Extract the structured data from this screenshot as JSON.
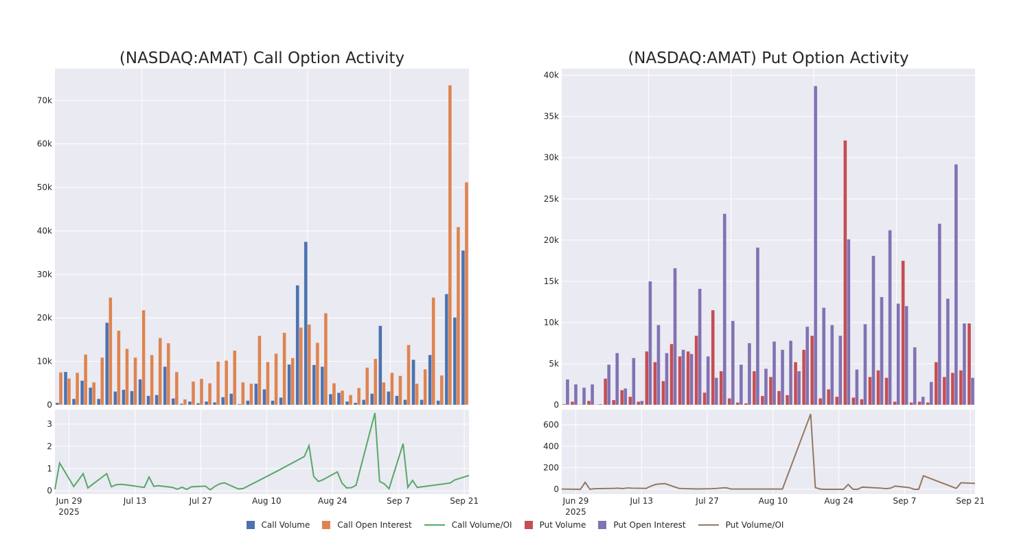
{
  "chart_data": [
    {
      "type": "bar+line",
      "title": "(NASDAQ:AMAT) Call Option Activity",
      "bar_ylim": [
        0,
        77300
      ],
      "bar_yticks": [
        0,
        10000,
        20000,
        30000,
        40000,
        50000,
        60000,
        70000
      ],
      "bar_ytick_labels": [
        "0",
        "10k",
        "20k",
        "30k",
        "40k",
        "50k",
        "60k",
        "70k"
      ],
      "line_ylim": [
        -0.15,
        3.65
      ],
      "line_yticks": [
        0,
        1,
        2,
        3
      ],
      "line_ytick_labels": [
        "0",
        "1",
        "2",
        "3"
      ],
      "series": [
        {
          "name": "Call Volume",
          "color": "#4c72b0",
          "values": [
            500,
            7600,
            1400,
            5600,
            4000,
            1400,
            18900,
            3100,
            3500,
            3200,
            5900,
            2100,
            2300,
            8800,
            1500,
            300,
            800,
            400,
            800,
            600,
            1800,
            2600,
            200,
            1000,
            4900,
            3600,
            1000,
            1700,
            9300,
            27500,
            37500,
            9200,
            8800,
            2500,
            2800,
            800,
            500,
            1200,
            2600,
            18200,
            3100,
            2100,
            1200,
            10400,
            1200,
            11500,
            1000,
            25500,
            20100,
            35500
          ]
        },
        {
          "name": "Call Open Interest",
          "color": "#dd8452",
          "values": [
            7500,
            6100,
            7400,
            11600,
            5200,
            10900,
            24700,
            17100,
            12900,
            10900,
            21800,
            11500,
            15400,
            14200,
            7600,
            1300,
            5400,
            6000,
            5000,
            10000,
            10200,
            12500,
            5200,
            4900,
            15900,
            9900,
            11800,
            16600,
            10800,
            17800,
            18500,
            14300,
            21100,
            5000,
            3300,
            2300,
            3900,
            8600,
            10600,
            5200,
            7400,
            6700,
            13800,
            4900,
            8200,
            24700,
            6800,
            73500,
            40900,
            51200
          ]
        },
        {
          "name": "Call Volume/OI",
          "color": "#55a868",
          "values": [
            0.07,
            1.25,
            0.19,
            0.48,
            0.77,
            0.13,
            0.77,
            0.18,
            0.27,
            0.29,
            0.27,
            0.18,
            0.15,
            0.62,
            0.2,
            0.23,
            0.15,
            0.07,
            0.16,
            0.06,
            0.18,
            0.21,
            0.04,
            0.2,
            0.31,
            0.36,
            0.08,
            0.1,
            0.86,
            1.54,
            2.03,
            0.64,
            0.42,
            0.5,
            0.85,
            0.35,
            0.13,
            0.14,
            0.25,
            3.5,
            0.42,
            0.31,
            0.09,
            2.12,
            0.15,
            0.47,
            0.15,
            0.35,
            0.49,
            0.69
          ]
        }
      ]
    },
    {
      "type": "bar+line",
      "title": "(NASDAQ:AMAT) Put Option Activity",
      "bar_ylim": [
        0,
        40800
      ],
      "bar_yticks": [
        0,
        5000,
        10000,
        15000,
        20000,
        25000,
        30000,
        35000,
        40000
      ],
      "bar_ytick_labels": [
        "0",
        "5k",
        "10k",
        "15k",
        "20k",
        "25k",
        "30k",
        "35k",
        "40k"
      ],
      "line_ylim": [
        -45,
        740
      ],
      "line_yticks": [
        0,
        200,
        400,
        600
      ],
      "line_ytick_labels": [
        "0",
        "200",
        "400",
        "600"
      ],
      "series": [
        {
          "name": "Put Volume",
          "color": "#c44e52",
          "values": [
            100,
            400,
            50,
            500,
            50,
            3200,
            600,
            1800,
            1000,
            400,
            6500,
            5200,
            2900,
            7400,
            5900,
            6500,
            8400,
            1500,
            11500,
            4100,
            800,
            300,
            200,
            4100,
            1100,
            3400,
            1700,
            1200,
            5200,
            6700,
            8400,
            800,
            1900,
            1000,
            32100,
            900,
            700,
            3400,
            4200,
            3300,
            400,
            17500,
            300,
            400,
            300,
            5200,
            3400,
            3900,
            4200,
            9900
          ]
        },
        {
          "name": "Put Open Interest",
          "color": "#8172b3",
          "values": [
            3100,
            2500,
            2100,
            2500,
            100,
            4900,
            6300,
            2000,
            5700,
            500,
            15000,
            9700,
            6300,
            16600,
            6700,
            6200,
            14100,
            5900,
            3300,
            23200,
            10200,
            4900,
            7500,
            19100,
            4400,
            7700,
            6700,
            7800,
            4100,
            9500,
            38700,
            11800,
            9700,
            8400,
            20100,
            4300,
            9800,
            18100,
            13100,
            21200,
            12300,
            12000,
            7000,
            1000,
            2800,
            22000,
            12900,
            29200,
            9900,
            3300
          ]
        },
        {
          "name": "Put Volume/OI",
          "color": "#937860",
          "values": [
            2,
            1,
            0,
            65,
            0,
            5,
            8,
            10,
            6,
            12,
            10,
            8,
            30,
            45,
            50,
            52,
            8,
            6,
            5,
            4,
            3,
            5,
            8,
            12,
            14,
            3,
            2,
            2,
            2,
            700,
            15,
            2,
            0,
            0,
            0,
            45,
            0,
            0,
            20,
            10,
            5,
            10,
            30,
            15,
            0,
            0,
            125,
            8,
            60,
            55
          ]
        }
      ]
    }
  ],
  "dates": [
    "2025-06-26",
    "2025-06-27",
    "2025-06-30",
    "2025-07-01",
    "2025-07-02",
    "2025-07-03",
    "2025-07-07",
    "2025-07-08",
    "2025-07-09",
    "2025-07-10",
    "2025-07-11",
    "2025-07-14",
    "2025-07-15",
    "2025-07-16",
    "2025-07-17",
    "2025-07-18",
    "2025-07-21",
    "2025-07-22",
    "2025-07-23",
    "2025-07-24",
    "2025-07-25",
    "2025-07-28",
    "2025-07-29",
    "2025-07-30",
    "2025-07-31",
    "2025-08-01",
    "2025-08-04",
    "2025-08-05",
    "2025-08-12",
    "2025-08-18",
    "2025-08-19",
    "2025-08-20",
    "2025-08-21",
    "2025-08-22",
    "2025-08-25",
    "2025-08-26",
    "2025-08-27",
    "2025-08-28",
    "2025-08-29",
    "2025-09-02",
    "2025-09-03",
    "2025-09-04",
    "2025-09-05",
    "2025-09-08",
    "2025-09-09",
    "2025-09-10",
    "2025-09-11",
    "2025-09-18",
    "2025-09-19",
    "2025-09-22"
  ],
  "x_domain": [
    "2025-06-26",
    "2025-09-22"
  ],
  "x_ticks": [
    "2025-06-29",
    "2025-07-13",
    "2025-07-27",
    "2025-08-10",
    "2025-08-24",
    "2025-09-07",
    "2025-09-21"
  ],
  "x_tick_labels": [
    "Jun 29",
    "Jul 13",
    "Jul 27",
    "Aug 10",
    "Aug 24",
    "Sep 7",
    "Sep 21"
  ],
  "x_year_label": "2025",
  "legend": [
    {
      "label": "Call Volume",
      "kind": "bar",
      "color": "#4c72b0"
    },
    {
      "label": "Call Open Interest",
      "kind": "bar",
      "color": "#dd8452"
    },
    {
      "label": "Call Volume/OI",
      "kind": "line",
      "color": "#55a868"
    },
    {
      "label": "Put Volume",
      "kind": "bar",
      "color": "#c44e52"
    },
    {
      "label": "Put Open Interest",
      "kind": "bar",
      "color": "#8172b3"
    },
    {
      "label": "Put Volume/OI",
      "kind": "line",
      "color": "#937860"
    }
  ]
}
